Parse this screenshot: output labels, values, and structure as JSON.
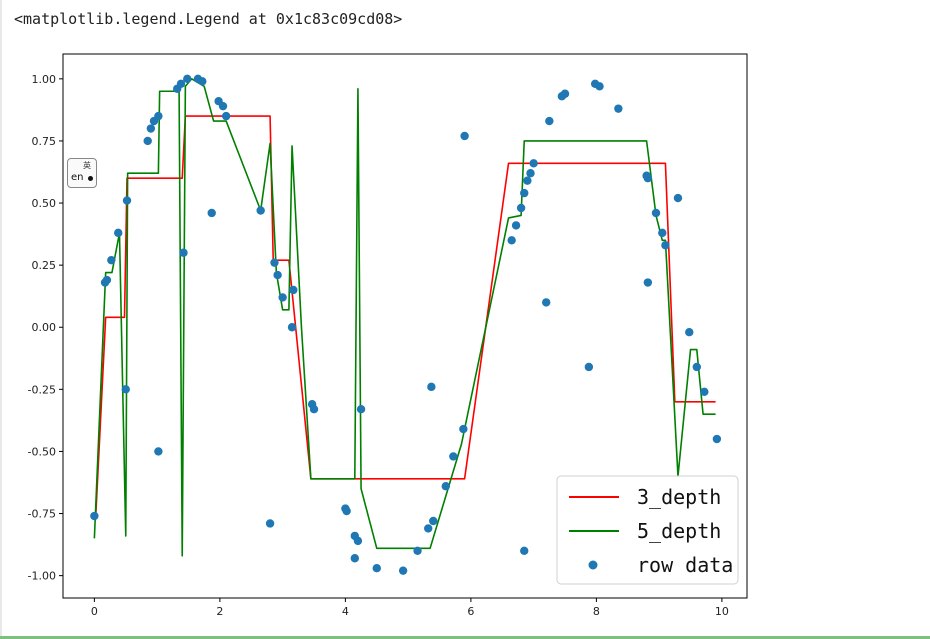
{
  "output": {
    "repr_text": "<matplotlib.legend.Legend at 0x1c83c09cd08>"
  },
  "ime_indicator": {
    "small_label": "英",
    "main_label": "en"
  },
  "chart_data": {
    "type": "line",
    "title": "",
    "xlabel": "",
    "ylabel": "",
    "xlim": [
      -0.5,
      10.4
    ],
    "ylim": [
      -1.09,
      1.1
    ],
    "x_ticks": [
      0,
      2,
      4,
      6,
      8,
      10
    ],
    "y_ticks": [
      1.0,
      0.75,
      0.5,
      0.25,
      0.0,
      -0.25,
      -0.5,
      -0.75,
      -1.0
    ],
    "x_tick_labels": [
      "0",
      "2",
      "4",
      "6",
      "8",
      "10"
    ],
    "y_tick_labels": [
      "1.00",
      "0.75",
      "0.50",
      "0.25",
      "0.00",
      "-0.25",
      "-0.50",
      "-0.75",
      "-1.00"
    ],
    "grid": false,
    "legend_position": "lower-right",
    "colors": {
      "red": "#ff0000",
      "green": "#008000",
      "points": "#1f77b4"
    },
    "series": [
      {
        "name": "3_depth",
        "type": "step-line",
        "color": "#ff0000",
        "points": [
          [
            0.0,
            -0.77
          ],
          [
            0.02,
            -0.77
          ],
          [
            0.18,
            0.04
          ],
          [
            0.48,
            0.04
          ],
          [
            0.52,
            0.6
          ],
          [
            1.4,
            0.6
          ],
          [
            1.45,
            0.85
          ],
          [
            2.8,
            0.85
          ],
          [
            2.85,
            0.27
          ],
          [
            3.1,
            0.27
          ],
          [
            3.45,
            -0.61
          ],
          [
            5.9,
            -0.61
          ],
          [
            6.6,
            0.66
          ],
          [
            9.1,
            0.66
          ],
          [
            9.25,
            -0.3
          ],
          [
            9.9,
            -0.3
          ]
        ]
      },
      {
        "name": "5_depth",
        "type": "line",
        "color": "#008000",
        "points": [
          [
            0.0,
            -0.85
          ],
          [
            0.18,
            0.22
          ],
          [
            0.28,
            0.22
          ],
          [
            0.4,
            0.38
          ],
          [
            0.5,
            -0.84
          ],
          [
            0.53,
            0.62
          ],
          [
            1.02,
            0.62
          ],
          [
            1.04,
            0.95
          ],
          [
            1.35,
            0.95
          ],
          [
            1.4,
            -0.92
          ],
          [
            1.45,
            0.97
          ],
          [
            1.55,
            1.0
          ],
          [
            1.75,
            0.97
          ],
          [
            1.9,
            0.83
          ],
          [
            2.1,
            0.83
          ],
          [
            2.65,
            0.47
          ],
          [
            2.8,
            0.74
          ],
          [
            2.9,
            0.22
          ],
          [
            3.0,
            0.07
          ],
          [
            3.1,
            0.07
          ],
          [
            3.15,
            0.73
          ],
          [
            3.3,
            0.0
          ],
          [
            3.45,
            -0.61
          ],
          [
            4.15,
            -0.61
          ],
          [
            4.2,
            0.96
          ],
          [
            4.25,
            -0.65
          ],
          [
            4.5,
            -0.89
          ],
          [
            5.35,
            -0.89
          ],
          [
            5.85,
            -0.47
          ],
          [
            6.6,
            0.44
          ],
          [
            6.8,
            0.45
          ],
          [
            6.85,
            0.75
          ],
          [
            8.8,
            0.75
          ],
          [
            8.95,
            0.45
          ],
          [
            9.05,
            0.35
          ],
          [
            9.1,
            0.35
          ],
          [
            9.3,
            -0.6
          ],
          [
            9.5,
            -0.09
          ],
          [
            9.6,
            -0.09
          ],
          [
            9.7,
            -0.35
          ],
          [
            9.9,
            -0.35
          ]
        ]
      },
      {
        "name": "row data",
        "type": "scatter",
        "color": "#1f77b4",
        "points": [
          [
            0.0,
            -0.76
          ],
          [
            0.17,
            0.18
          ],
          [
            0.2,
            0.19
          ],
          [
            0.27,
            0.27
          ],
          [
            0.38,
            0.38
          ],
          [
            0.5,
            -0.25
          ],
          [
            0.52,
            0.51
          ],
          [
            0.85,
            0.75
          ],
          [
            0.9,
            0.8
          ],
          [
            0.95,
            0.83
          ],
          [
            1.02,
            0.85
          ],
          [
            1.02,
            -0.5
          ],
          [
            1.32,
            0.96
          ],
          [
            1.38,
            0.98
          ],
          [
            1.42,
            0.3
          ],
          [
            1.48,
            1.0
          ],
          [
            1.65,
            1.0
          ],
          [
            1.72,
            0.99
          ],
          [
            1.87,
            0.46
          ],
          [
            1.98,
            0.91
          ],
          [
            2.05,
            0.89
          ],
          [
            2.1,
            0.85
          ],
          [
            2.65,
            0.47
          ],
          [
            2.8,
            -0.79
          ],
          [
            2.87,
            0.26
          ],
          [
            2.92,
            0.21
          ],
          [
            3.0,
            0.12
          ],
          [
            3.15,
            0.0
          ],
          [
            3.17,
            0.15
          ],
          [
            3.47,
            -0.31
          ],
          [
            3.5,
            -0.33
          ],
          [
            4.0,
            -0.73
          ],
          [
            4.02,
            -0.74
          ],
          [
            4.15,
            -0.93
          ],
          [
            4.15,
            -0.84
          ],
          [
            4.2,
            -0.86
          ],
          [
            4.25,
            -0.33
          ],
          [
            4.5,
            -0.97
          ],
          [
            4.92,
            -0.98
          ],
          [
            5.15,
            -0.9
          ],
          [
            5.32,
            -0.81
          ],
          [
            5.37,
            -0.24
          ],
          [
            5.4,
            -0.78
          ],
          [
            5.6,
            -0.64
          ],
          [
            5.72,
            -0.52
          ],
          [
            5.88,
            -0.41
          ],
          [
            5.9,
            0.77
          ],
          [
            6.65,
            0.35
          ],
          [
            6.72,
            0.41
          ],
          [
            6.8,
            0.48
          ],
          [
            6.85,
            0.54
          ],
          [
            6.85,
            -0.9
          ],
          [
            6.9,
            0.59
          ],
          [
            6.95,
            0.62
          ],
          [
            7.0,
            0.66
          ],
          [
            7.2,
            0.1
          ],
          [
            7.25,
            0.83
          ],
          [
            7.45,
            0.93
          ],
          [
            7.5,
            0.94
          ],
          [
            7.88,
            -0.16
          ],
          [
            7.98,
            0.98
          ],
          [
            8.05,
            0.97
          ],
          [
            8.35,
            0.88
          ],
          [
            8.8,
            0.61
          ],
          [
            8.82,
            0.6
          ],
          [
            8.82,
            0.18
          ],
          [
            8.95,
            0.46
          ],
          [
            9.05,
            0.38
          ],
          [
            9.1,
            0.33
          ],
          [
            9.3,
            0.52
          ],
          [
            9.48,
            -0.02
          ],
          [
            9.6,
            -0.16
          ],
          [
            9.72,
            -0.26
          ],
          [
            9.92,
            -0.45
          ]
        ]
      }
    ]
  }
}
